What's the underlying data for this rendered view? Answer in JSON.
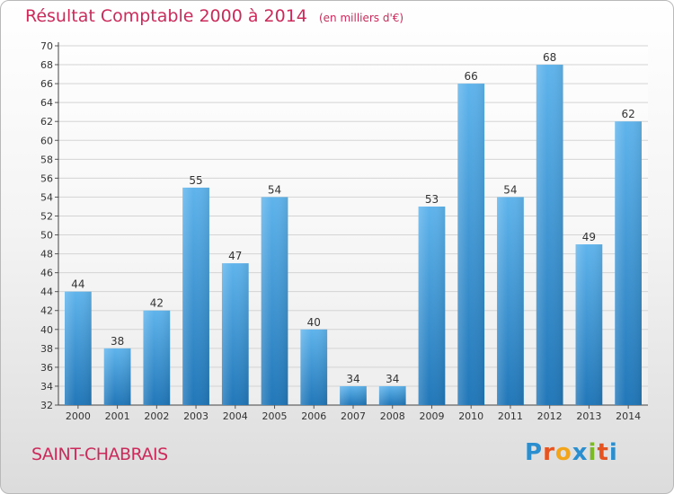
{
  "header": {
    "title": "Résultat Comptable 2000 à 2014",
    "subtitle": "(en milliers d'€)"
  },
  "commune": "SAINT-CHABRAIS",
  "logo": {
    "letters": [
      "P",
      "r",
      "o",
      "x",
      "i",
      "t",
      "i"
    ],
    "colors": [
      "#2b8fcf",
      "#e7531e",
      "#f2a51a",
      "#2b8fcf",
      "#7bb928",
      "#e7531e",
      "#2b8fcf"
    ]
  },
  "colors": {
    "bar_top": "#5fb4ec",
    "bar_bottom": "#2177b8",
    "title": "#cc2a5b",
    "grid": "#d4d4d4"
  },
  "chart_data": {
    "type": "bar",
    "title": "Résultat Comptable 2000 à 2014",
    "subtitle": "(en milliers d'€)",
    "categories": [
      "2000",
      "2001",
      "2002",
      "2003",
      "2004",
      "2005",
      "2006",
      "2007",
      "2008",
      "2009",
      "2010",
      "2011",
      "2012",
      "2013",
      "2014"
    ],
    "values": [
      44,
      38,
      42,
      55,
      47,
      54,
      40,
      34,
      34,
      53,
      66,
      54,
      68,
      49,
      62
    ],
    "ylim": [
      32,
      70
    ],
    "yticks": [
      32,
      34,
      36,
      38,
      40,
      42,
      44,
      46,
      48,
      50,
      52,
      54,
      56,
      58,
      60,
      62,
      64,
      66,
      68,
      70
    ],
    "grid": true,
    "xlabel": "",
    "ylabel": ""
  }
}
